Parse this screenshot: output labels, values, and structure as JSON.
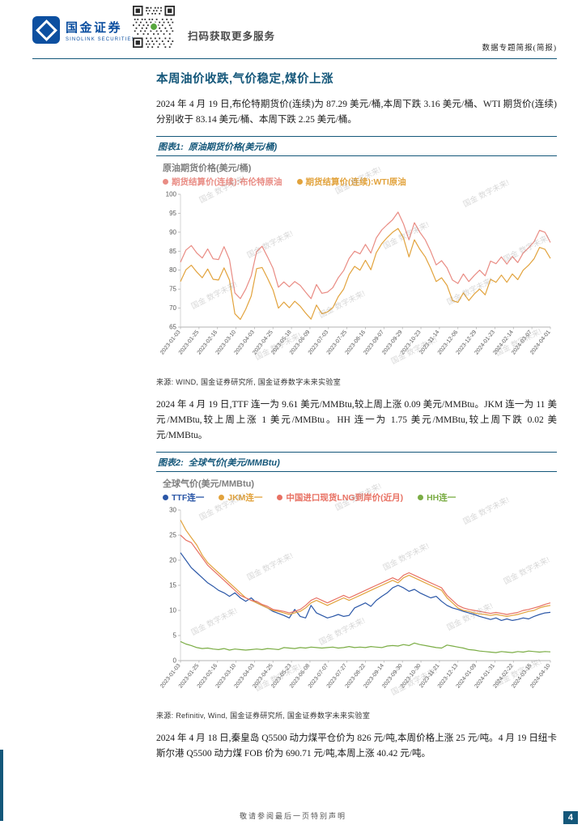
{
  "header": {
    "logo_cn": "国金证券",
    "logo_en": "SINOLINK SECURITIES",
    "qr_caption": "扫码获取更多服务",
    "doc_type": "数据专题简报(简报)"
  },
  "title": "本周油价收跌,气价稳定,煤价上涨",
  "paragraphs": [
    "2024 年 4 月 19 日,布伦特期货价(连续)为 87.29 美元/桶,本周下跌 3.16 美元/桶、WTI 期货价(连续)分别收于 83.14 美元/桶、本周下跌 2.25 美元/桶。",
    "2024 年 4 月 19 日,TTF 连一为 9.61 美元/MMBtu,较上周上涨 0.09 美元/MMBtu。JKM 连一为 11 美元/MMBtu,较上周上涨 1 美元/MMBtu。HH 连一为 1.75 美元/MMBtu,较上周下跌 0.02 美元/MMBtu。",
    "2024 年 4 月 18 日,秦皇岛 Q5500 动力煤平仓价为 826 元/吨,本周价格上涨 25 元/吨。4 月 19 日纽卡斯尔港 Q5500 动力煤 FOB 价为 690.71 元/吨,本周上涨 40.42 元/吨。"
  ],
  "figure1": {
    "label": "图表1:",
    "title": "原油期货价格(美元/桶)",
    "source": "来源: WIND, 国金证券研究所, 国金证券数字未来实验室"
  },
  "figure2": {
    "label": "图表2:",
    "title": "全球气价(美元/MMBtu)",
    "source": "来源: Refinitiv, Wind, 国金证券研究所, 国金证券数字未来实验室"
  },
  "footer": {
    "disclaimer": "敬请参阅最后一页特别声明",
    "page_number": "4"
  },
  "watermark": "国金 数字未来!",
  "colors": {
    "accent_teal": "#14577A",
    "logo_blue": "#0C4FA0",
    "brent": "#E98C84",
    "wti": "#E2A33D",
    "ttf": "#2B57A7",
    "jkm": "#E2A33D",
    "china_lng": "#E87163",
    "hh": "#7BAD45"
  },
  "chart_data": [
    {
      "type": "line",
      "title": "原油期货价格(美元/桶)",
      "ylabel": "美元/桶",
      "ylim": [
        65,
        100
      ],
      "ytick_step": 5,
      "grid": false,
      "legend_position": "top-left",
      "x_labels": [
        "2023-01-03",
        "2023-01-25",
        "2023-02-16",
        "2023-03-10",
        "2023-04-03",
        "2023-04-25",
        "2023-05-18",
        "2023-06-09",
        "2023-07-03",
        "2023-07-25",
        "2023-08-16",
        "2023-09-07",
        "2023-09-29",
        "2023-10-23",
        "2023-11-14",
        "2023-12-06",
        "2023-12-29",
        "2024-01-23",
        "2024-02-14",
        "2024-03-07",
        "2024-04-01"
      ],
      "series": [
        {
          "name": "期货结算价(连续):布伦特原油",
          "color": "#E98C84",
          "values": [
            82.1,
            85.3,
            86.5,
            84.5,
            83.2,
            85.6,
            83.0,
            82.8,
            86.2,
            82.8,
            74.0,
            72.5,
            75.0,
            78.5,
            84.9,
            86.3,
            83.5,
            80.5,
            75.5,
            76.9,
            75.6,
            77.0,
            76.0,
            74.2,
            72.5,
            76.2,
            73.9,
            74.2,
            75.4,
            78.0,
            79.9,
            83.1,
            85.0,
            84.3,
            86.8,
            84.5,
            88.5,
            90.6,
            92.0,
            93.3,
            95.3,
            92.2,
            88.0,
            92.5,
            90.0,
            88.0,
            85.0,
            81.4,
            82.5,
            80.6,
            77.4,
            76.5,
            79.0,
            77.0,
            78.6,
            80.0,
            78.5,
            82.4,
            81.7,
            83.5,
            81.6,
            83.6,
            82.0,
            84.5,
            85.9,
            87.5,
            90.5,
            90.0,
            87.3
          ]
        },
        {
          "name": "期货结算价(连续):WTI原油",
          "color": "#E2A33D",
          "values": [
            77.0,
            80.1,
            81.3,
            79.5,
            78.0,
            80.3,
            77.6,
            77.4,
            80.6,
            77.4,
            68.5,
            67.0,
            69.7,
            73.2,
            80.4,
            80.7,
            77.9,
            74.8,
            70.0,
            71.6,
            70.1,
            71.8,
            70.5,
            68.7,
            67.1,
            70.8,
            68.5,
            69.0,
            70.1,
            73.0,
            75.0,
            78.8,
            81.0,
            80.0,
            82.6,
            80.1,
            84.6,
            87.0,
            88.6,
            90.0,
            91.0,
            88.5,
            83.5,
            88.0,
            85.5,
            83.5,
            80.5,
            77.0,
            78.0,
            76.0,
            72.0,
            71.5,
            74.0,
            72.0,
            73.7,
            75.0,
            73.5,
            77.6,
            76.8,
            78.7,
            76.8,
            79.0,
            77.5,
            80.0,
            81.3,
            83.0,
            86.0,
            85.5,
            83.1
          ]
        }
      ]
    },
    {
      "type": "line",
      "title": "全球气价(美元/MMBtu)",
      "ylabel": "美元/MMBtu",
      "ylim": [
        0,
        30
      ],
      "ytick_step": 5,
      "grid": false,
      "legend_position": "top-left",
      "x_labels": [
        "2023-01-03",
        "2023-01-25",
        "2023-02-16",
        "2023-03-10",
        "2023-04-03",
        "2023-04-25",
        "2023-05-23",
        "2023-06-08",
        "2023-07-07",
        "2023-07-27",
        "2023-08-22",
        "2023-09-14",
        "2023-09-30",
        "2023-10-30",
        "2023-11-21",
        "2023-12-13",
        "2024-01-09",
        "2024-01-31",
        "2024-02-22",
        "2024-03-15",
        "2024-04-10"
      ],
      "series": [
        {
          "name": "TTF连一",
          "color": "#2B57A7",
          "values": [
            21.5,
            20.0,
            18.5,
            17.5,
            16.5,
            15.5,
            14.8,
            14.0,
            13.5,
            12.8,
            13.5,
            12.5,
            11.8,
            12.5,
            11.5,
            11.0,
            10.5,
            9.8,
            9.4,
            9.0,
            8.5,
            10.2,
            8.8,
            8.5,
            11.0,
            9.5,
            9.0,
            8.5,
            8.8,
            9.2,
            8.8,
            9.0,
            10.5,
            11.0,
            11.5,
            10.8,
            12.0,
            12.8,
            13.5,
            14.5,
            15.0,
            14.5,
            13.8,
            14.2,
            13.5,
            13.0,
            12.5,
            12.8,
            11.8,
            11.0,
            10.5,
            10.2,
            9.8,
            9.5,
            9.2,
            8.8,
            8.5,
            8.2,
            8.5,
            8.0,
            8.3,
            8.0,
            8.2,
            8.5,
            8.3,
            8.8,
            9.2,
            9.5,
            9.61
          ]
        },
        {
          "name": "JKM连一",
          "color": "#E2A33D",
          "values": [
            28.0,
            26.0,
            24.5,
            23.0,
            21.0,
            19.5,
            18.5,
            17.5,
            16.5,
            15.5,
            14.5,
            13.5,
            12.5,
            12.0,
            11.5,
            11.0,
            10.5,
            10.0,
            9.8,
            9.5,
            9.2,
            9.5,
            9.8,
            10.5,
            11.5,
            12.0,
            11.5,
            11.0,
            11.5,
            12.0,
            12.5,
            12.0,
            12.5,
            13.0,
            13.5,
            14.0,
            14.5,
            15.0,
            15.5,
            16.0,
            15.5,
            16.5,
            17.0,
            16.5,
            16.0,
            15.5,
            15.0,
            14.5,
            14.0,
            12.5,
            11.5,
            10.5,
            10.0,
            9.8,
            9.5,
            9.3,
            9.2,
            9.0,
            9.2,
            9.0,
            8.8,
            9.0,
            9.2,
            9.5,
            9.8,
            10.0,
            10.5,
            10.8,
            11.0
          ]
        },
        {
          "name": "中国进口现货LNG到岸价(近月)",
          "color": "#E87163",
          "values": [
            25.0,
            24.0,
            23.5,
            22.0,
            20.5,
            19.0,
            18.0,
            17.0,
            16.0,
            15.0,
            14.0,
            13.0,
            12.5,
            12.0,
            11.8,
            11.2,
            10.8,
            10.2,
            10.0,
            9.8,
            9.5,
            9.8,
            10.2,
            11.0,
            12.0,
            12.5,
            12.0,
            11.5,
            12.0,
            12.5,
            13.0,
            12.5,
            13.0,
            13.5,
            14.0,
            14.5,
            15.0,
            15.5,
            16.0,
            16.5,
            16.0,
            17.0,
            17.5,
            17.0,
            16.5,
            16.0,
            15.5,
            15.0,
            14.5,
            13.0,
            12.0,
            11.0,
            10.5,
            10.2,
            10.0,
            9.8,
            9.6,
            9.4,
            9.6,
            9.4,
            9.2,
            9.4,
            9.6,
            10.0,
            10.2,
            10.5,
            10.8,
            11.2,
            11.5
          ]
        },
        {
          "name": "HH连一",
          "color": "#7BAD45",
          "values": [
            3.8,
            3.3,
            3.0,
            2.6,
            2.4,
            2.5,
            2.3,
            2.2,
            2.4,
            2.1,
            2.3,
            2.2,
            2.1,
            2.2,
            2.3,
            2.2,
            2.4,
            2.3,
            2.2,
            2.6,
            2.5,
            2.4,
            2.6,
            2.5,
            2.7,
            2.6,
            2.5,
            2.6,
            2.7,
            2.5,
            2.6,
            2.8,
            2.6,
            2.7,
            2.6,
            2.8,
            2.7,
            2.6,
            2.9,
            3.0,
            2.9,
            3.2,
            3.0,
            3.5,
            3.2,
            3.0,
            2.8,
            2.6,
            2.5,
            3.1,
            2.9,
            2.7,
            2.5,
            2.2,
            2.1,
            1.9,
            1.8,
            1.7,
            1.6,
            1.8,
            1.7,
            1.6,
            1.8,
            1.7,
            1.9,
            1.8,
            1.7,
            1.8,
            1.75
          ]
        }
      ]
    }
  ]
}
